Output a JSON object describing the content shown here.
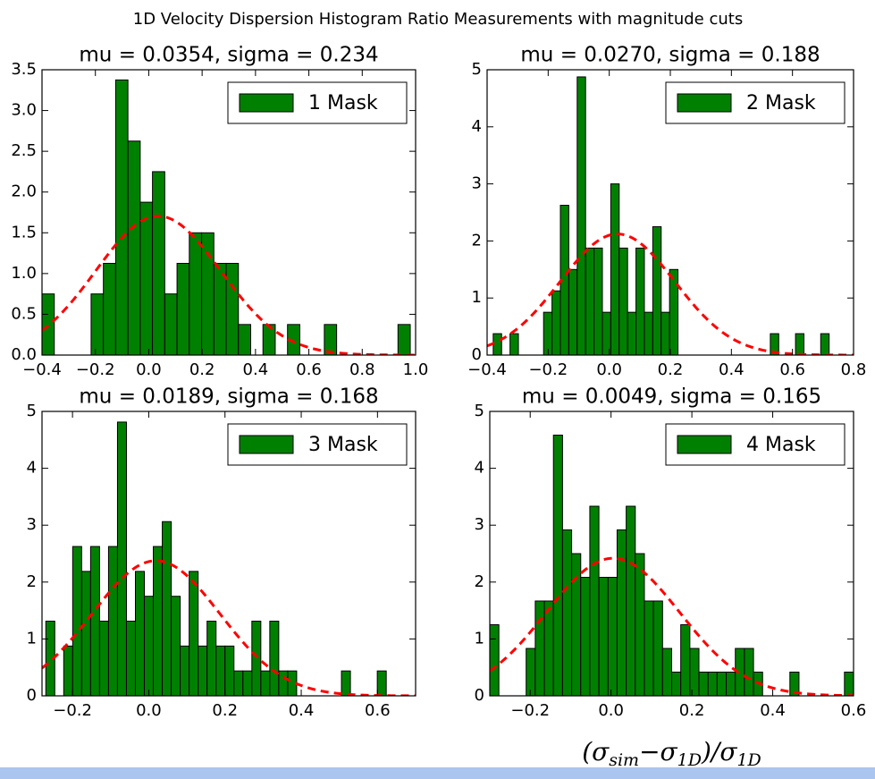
{
  "title": "1D Velocity Dispersion Histogram Ratio Measurements with magnitude cuts",
  "chart_data": [
    {
      "type": "histogram",
      "title": "mu = 0.0354, sigma = 0.234",
      "fit": {
        "mu": 0.0354,
        "sigma": 0.234,
        "color": "#ff0000"
      },
      "bins": [
        -0.4,
        -0.354,
        -0.308,
        -0.262,
        -0.216,
        -0.17,
        -0.124,
        -0.078,
        -0.032,
        0.014,
        0.06,
        0.106,
        0.152,
        0.198,
        0.244,
        0.29,
        0.336,
        0.382,
        0.428,
        0.474,
        0.52,
        0.566,
        0.612,
        0.658,
        0.704,
        0.75,
        0.796,
        0.842,
        0.888,
        0.934,
        0.98
      ],
      "series": [
        {
          "name": "1 Mask",
          "color": "#008000",
          "values": [
            0.75,
            0,
            0,
            0,
            0.75,
            1.125,
            3.375,
            2.625,
            1.875,
            2.25,
            0.75,
            1.125,
            1.5,
            1.5,
            1.125,
            1.125,
            0.375,
            0,
            0.375,
            0,
            0.375,
            0,
            0,
            0.375,
            0,
            0,
            0,
            0,
            0,
            0.375
          ]
        }
      ],
      "xlim": [
        -0.4,
        1.0
      ],
      "ylim": [
        0,
        3.5
      ],
      "xticks": [
        {
          "value": -0.4,
          "label": "−0.4"
        },
        {
          "value": -0.2,
          "label": "−0.2"
        },
        {
          "value": 0,
          "label": "0.0"
        },
        0.2,
        0.4,
        0.6,
        0.8,
        {
          "value": 1,
          "label": "1.0"
        }
      ],
      "yticks": [
        {
          "value": 0,
          "label": "0.0"
        },
        0.5,
        {
          "value": 1,
          "label": "1.0"
        },
        1.5,
        {
          "value": 2,
          "label": "2.0"
        },
        2.5,
        {
          "value": 3,
          "label": "3.0"
        },
        3.5
      ],
      "legend": "upper right"
    },
    {
      "type": "histogram",
      "title": "mu = 0.0270, sigma = 0.188",
      "fit": {
        "mu": 0.027,
        "sigma": 0.188,
        "color": "#ff0000"
      },
      "bins": [
        -0.38,
        -0.3525,
        -0.325,
        -0.2975,
        -0.27,
        -0.2425,
        -0.215,
        -0.1875,
        -0.16,
        -0.1325,
        -0.105,
        -0.0775,
        -0.05,
        -0.0225,
        0.005,
        0.0325,
        0.06,
        0.0875,
        0.115,
        0.1425,
        0.17,
        0.1975,
        0.225,
        0.2525,
        0.28,
        0.3075,
        0.335,
        0.3625,
        0.39,
        0.4175,
        0.445,
        0.4725,
        0.5,
        0.5275,
        0.555,
        0.5825,
        0.61,
        0.6375,
        0.665,
        0.6925,
        0.72
      ],
      "series": [
        {
          "name": "2 Mask",
          "color": "#008000",
          "values": [
            0.375,
            0,
            0.375,
            0,
            0,
            0,
            0.75,
            1.125,
            2.625,
            1.5,
            4.875,
            1.875,
            1.875,
            0.75,
            3.0,
            1.875,
            0.75,
            1.875,
            0.75,
            2.25,
            0.75,
            1.5,
            0,
            0,
            0,
            0,
            0,
            0,
            0,
            0,
            0,
            0,
            0,
            0.375,
            0,
            0,
            0.375,
            0,
            0,
            0.375
          ]
        }
      ],
      "xlim": [
        -0.4,
        0.8
      ],
      "ylim": [
        0,
        5
      ],
      "xticks": [
        {
          "value": -0.4,
          "label": "−0.4"
        },
        {
          "value": -0.2,
          "label": "−0.2"
        },
        {
          "value": 0,
          "label": "0.0"
        },
        0.2,
        0.4,
        0.6,
        0.8
      ],
      "yticks": [
        0,
        1,
        2,
        3,
        4,
        5
      ],
      "legend": "upper right"
    },
    {
      "type": "histogram",
      "title": "mu = 0.0189, sigma = 0.168",
      "fit": {
        "mu": 0.0189,
        "sigma": 0.168,
        "color": "#ff0000"
      },
      "bins": [
        -0.27,
        -0.2465,
        -0.223,
        -0.1995,
        -0.176,
        -0.1525,
        -0.129,
        -0.1055,
        -0.082,
        -0.0585,
        -0.035,
        -0.0115,
        0.012,
        0.0355,
        0.059,
        0.0825,
        0.106,
        0.1295,
        0.153,
        0.1765,
        0.2,
        0.2235,
        0.247,
        0.2705,
        0.294,
        0.3175,
        0.341,
        0.3645,
        0.388,
        0.4115,
        0.435,
        0.4585,
        0.482,
        0.5055,
        0.529,
        0.5525,
        0.576,
        0.5995,
        0.623
      ],
      "series": [
        {
          "name": "3 Mask",
          "color": "#008000",
          "values": [
            1.3125,
            0,
            0.875,
            2.625,
            2.1875,
            2.625,
            1.3125,
            2.625,
            4.8125,
            1.3125,
            2.1875,
            1.75,
            2.625,
            3.0625,
            1.75,
            0.875,
            2.1875,
            0.875,
            1.3125,
            0.875,
            0.875,
            0.4375,
            0.4375,
            1.3125,
            0.4375,
            1.3125,
            0.4375,
            0.4375,
            0,
            0,
            0,
            0,
            0,
            0.4375,
            0,
            0,
            0,
            0.4375
          ]
        }
      ],
      "xlim": [
        -0.28,
        0.7
      ],
      "ylim": [
        0,
        5
      ],
      "xticks": [
        {
          "value": -0.2,
          "label": "−0.2"
        },
        {
          "value": 0,
          "label": "0.0"
        },
        0.2,
        0.4,
        0.6
      ],
      "yticks": [
        0,
        1,
        2,
        3,
        4,
        5
      ],
      "legend": "upper right"
    },
    {
      "type": "histogram",
      "title": "mu = 0.0049, sigma = 0.165",
      "fit": {
        "mu": 0.0049,
        "sigma": 0.165,
        "color": "#ff0000"
      },
      "bins": [
        -0.3,
        -0.2775,
        -0.255,
        -0.2325,
        -0.21,
        -0.1875,
        -0.165,
        -0.1425,
        -0.12,
        -0.0975,
        -0.075,
        -0.0525,
        -0.03,
        -0.0075,
        0.015,
        0.0375,
        0.06,
        0.0825,
        0.105,
        0.1275,
        0.15,
        0.1725,
        0.195,
        0.2175,
        0.24,
        0.2625,
        0.285,
        0.3075,
        0.33,
        0.3525,
        0.375,
        0.3975,
        0.42,
        0.4425,
        0.465,
        0.4875,
        0.51,
        0.5325,
        0.555,
        0.5775,
        0.6
      ],
      "series": [
        {
          "name": "4 Mask",
          "color": "#008000",
          "values": [
            1.25,
            0,
            0,
            0,
            0.833,
            1.667,
            1.667,
            4.583,
            2.917,
            2.5,
            2.083,
            3.333,
            2.083,
            2.083,
            2.917,
            3.333,
            2.5,
            1.667,
            1.667,
            0.833,
            0.417,
            1.25,
            0.833,
            0.417,
            0.417,
            0.417,
            0.417,
            0.833,
            0.833,
            0.417,
            0,
            0,
            0,
            0.417,
            0,
            0,
            0,
            0,
            0,
            0.417
          ]
        }
      ],
      "xlim": [
        -0.3,
        0.6
      ],
      "ylim": [
        0,
        5
      ],
      "xticks": [
        {
          "value": -0.2,
          "label": "−0.2"
        },
        {
          "value": 0,
          "label": "0.0"
        },
        0.2,
        0.4,
        0.6
      ],
      "yticks": [
        0,
        1,
        2,
        3,
        4,
        5
      ],
      "xlabel": [
        "(σ",
        "sim",
        "−σ",
        "1D",
        ")/σ",
        "1D"
      ],
      "legend": "upper right"
    }
  ]
}
